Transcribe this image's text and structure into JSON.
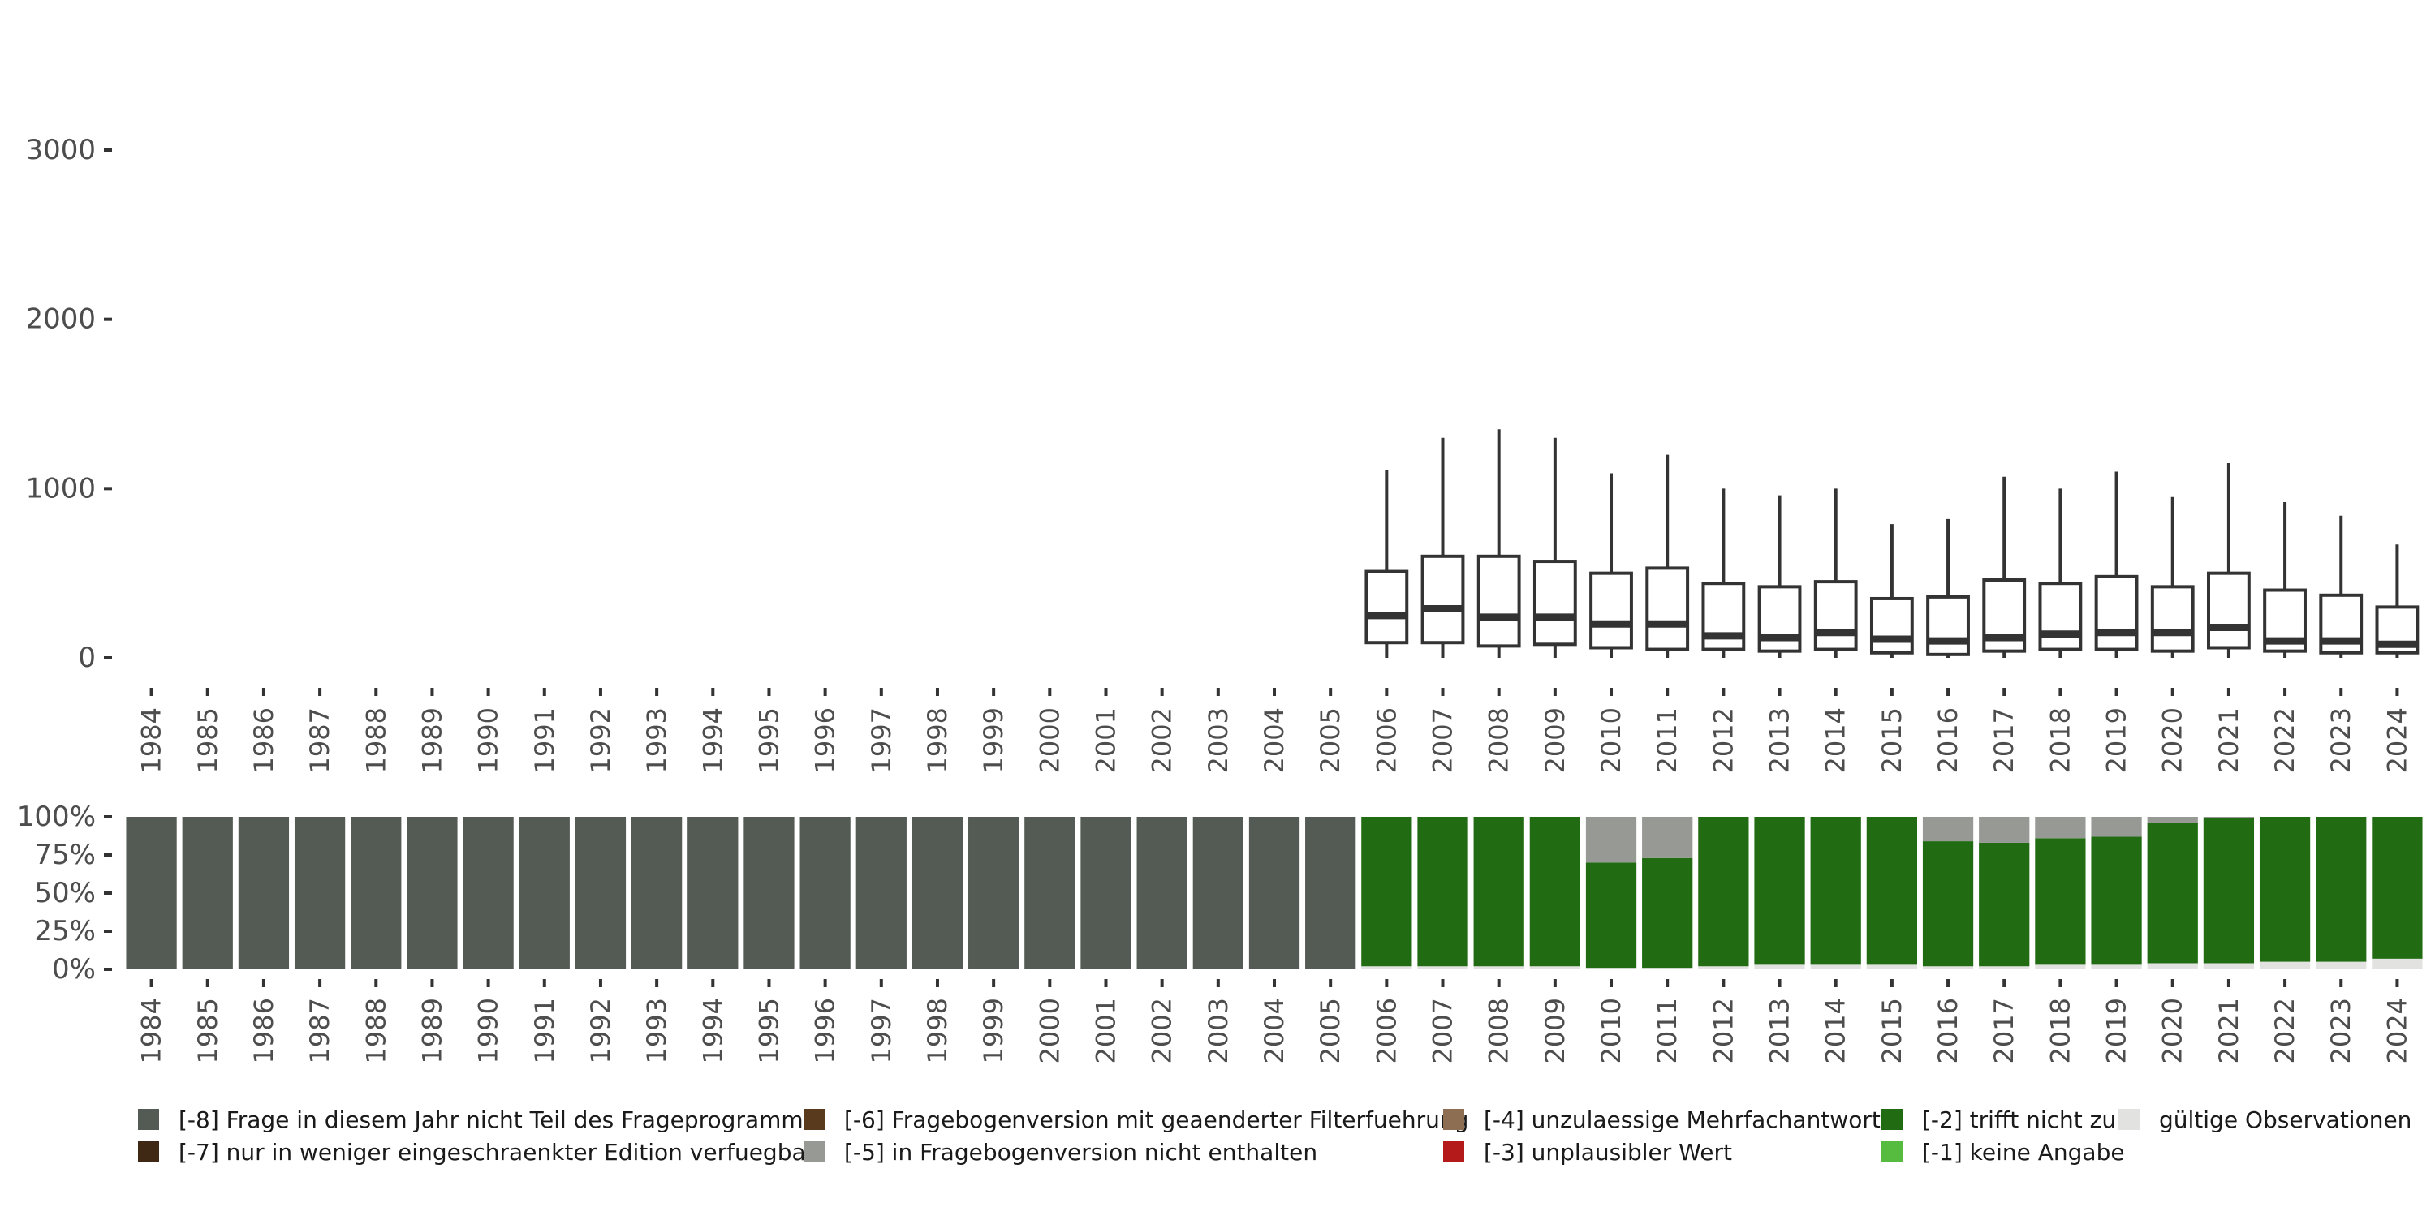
{
  "chart_data": [
    {
      "type": "boxplot",
      "title": "",
      "xlabel": "",
      "ylabel": "",
      "ylim": [
        0,
        3000
      ],
      "yticks": [
        "0",
        "1000",
        "2000",
        "3000"
      ],
      "categories": [
        "1984",
        "1985",
        "1986",
        "1987",
        "1988",
        "1989",
        "1990",
        "1991",
        "1992",
        "1993",
        "1994",
        "1995",
        "1996",
        "1997",
        "1998",
        "1999",
        "2000",
        "2001",
        "2002",
        "2003",
        "2004",
        "2005",
        "2006",
        "2007",
        "2008",
        "2009",
        "2010",
        "2011",
        "2012",
        "2013",
        "2014",
        "2015",
        "2016",
        "2017",
        "2018",
        "2019",
        "2020",
        "2021",
        "2022",
        "2023",
        "2024"
      ],
      "boxes": [
        {
          "year": "2006",
          "lower_whisker": 0,
          "q1": 90,
          "median": 250,
          "q3": 510,
          "upper_whisker": 1110
        },
        {
          "year": "2007",
          "lower_whisker": 0,
          "q1": 90,
          "median": 290,
          "q3": 600,
          "upper_whisker": 1300
        },
        {
          "year": "2008",
          "lower_whisker": 0,
          "q1": 70,
          "median": 240,
          "q3": 600,
          "upper_whisker": 1350
        },
        {
          "year": "2009",
          "lower_whisker": 0,
          "q1": 80,
          "median": 240,
          "q3": 570,
          "upper_whisker": 1300
        },
        {
          "year": "2010",
          "lower_whisker": 0,
          "q1": 60,
          "median": 200,
          "q3": 500,
          "upper_whisker": 1090
        },
        {
          "year": "2011",
          "lower_whisker": 0,
          "q1": 50,
          "median": 200,
          "q3": 530,
          "upper_whisker": 1200
        },
        {
          "year": "2012",
          "lower_whisker": 0,
          "q1": 50,
          "median": 130,
          "q3": 440,
          "upper_whisker": 1000
        },
        {
          "year": "2013",
          "lower_whisker": 0,
          "q1": 40,
          "median": 120,
          "q3": 420,
          "upper_whisker": 960
        },
        {
          "year": "2014",
          "lower_whisker": 0,
          "q1": 50,
          "median": 150,
          "q3": 450,
          "upper_whisker": 1000
        },
        {
          "year": "2015",
          "lower_whisker": 0,
          "q1": 30,
          "median": 110,
          "q3": 350,
          "upper_whisker": 790
        },
        {
          "year": "2016",
          "lower_whisker": 0,
          "q1": 20,
          "median": 100,
          "q3": 360,
          "upper_whisker": 820
        },
        {
          "year": "2017",
          "lower_whisker": 0,
          "q1": 40,
          "median": 120,
          "q3": 460,
          "upper_whisker": 1070
        },
        {
          "year": "2018",
          "lower_whisker": 0,
          "q1": 50,
          "median": 140,
          "q3": 440,
          "upper_whisker": 1000
        },
        {
          "year": "2019",
          "lower_whisker": 0,
          "q1": 50,
          "median": 150,
          "q3": 480,
          "upper_whisker": 1100
        },
        {
          "year": "2020",
          "lower_whisker": 0,
          "q1": 40,
          "median": 150,
          "q3": 420,
          "upper_whisker": 950
        },
        {
          "year": "2021",
          "lower_whisker": 0,
          "q1": 60,
          "median": 180,
          "q3": 500,
          "upper_whisker": 1150
        },
        {
          "year": "2022",
          "lower_whisker": 0,
          "q1": 40,
          "median": 100,
          "q3": 400,
          "upper_whisker": 920
        },
        {
          "year": "2023",
          "lower_whisker": 0,
          "q1": 30,
          "median": 100,
          "q3": 370,
          "upper_whisker": 840
        },
        {
          "year": "2024",
          "lower_whisker": 0,
          "q1": 30,
          "median": 80,
          "q3": 300,
          "upper_whisker": 670
        }
      ]
    },
    {
      "type": "stacked_bar",
      "title": "",
      "xlabel": "",
      "ylabel": "",
      "ylim": [
        0,
        100
      ],
      "yticks": [
        "0%",
        "25%",
        "50%",
        "75%",
        "100%"
      ],
      "categories": [
        "1984",
        "1985",
        "1986",
        "1987",
        "1988",
        "1989",
        "1990",
        "1991",
        "1992",
        "1993",
        "1994",
        "1995",
        "1996",
        "1997",
        "1998",
        "1999",
        "2000",
        "2001",
        "2002",
        "2003",
        "2004",
        "2005",
        "2006",
        "2007",
        "2008",
        "2009",
        "2010",
        "2011",
        "2012",
        "2013",
        "2014",
        "2015",
        "2016",
        "2017",
        "2018",
        "2019",
        "2020",
        "2021",
        "2022",
        "2023",
        "2024"
      ],
      "series": [
        {
          "name": "gültige Observationen",
          "color": "#e2e2e0",
          "values": [
            0,
            0,
            0,
            0,
            0,
            0,
            0,
            0,
            0,
            0,
            0,
            0,
            0,
            0,
            0,
            0,
            0,
            0,
            0,
            0,
            0,
            0,
            2,
            2,
            2,
            2,
            1,
            1,
            2,
            3,
            3,
            3,
            2,
            2,
            3,
            3,
            4,
            4,
            5,
            5,
            7
          ]
        },
        {
          "name": "[-1] keine Angabe",
          "color": "#56bc3f",
          "values": [
            0,
            0,
            0,
            0,
            0,
            0,
            0,
            0,
            0,
            0,
            0,
            0,
            0,
            0,
            0,
            0,
            0,
            0,
            0,
            0,
            0,
            0,
            0,
            0,
            0,
            0,
            0,
            0,
            0,
            0,
            0,
            0,
            0,
            0,
            0,
            0,
            0,
            0,
            0,
            0,
            0
          ]
        },
        {
          "name": "[-2] trifft nicht zu",
          "color": "#216c12",
          "values": [
            0,
            0,
            0,
            0,
            0,
            0,
            0,
            0,
            0,
            0,
            0,
            0,
            0,
            0,
            0,
            0,
            0,
            0,
            0,
            0,
            0,
            0,
            98,
            98,
            98,
            98,
            69,
            72,
            98,
            97,
            97,
            97,
            82,
            81,
            83,
            84,
            92,
            95,
            95,
            95,
            93
          ]
        },
        {
          "name": "[-3] unplausibler Wert",
          "color": "#b41a1a",
          "values": [
            0,
            0,
            0,
            0,
            0,
            0,
            0,
            0,
            0,
            0,
            0,
            0,
            0,
            0,
            0,
            0,
            0,
            0,
            0,
            0,
            0,
            0,
            0,
            0,
            0,
            0,
            0,
            0,
            0,
            0,
            0,
            0,
            0,
            0,
            0,
            0,
            0,
            0,
            0,
            0,
            0
          ]
        },
        {
          "name": "[-4] unzulaessige Mehrfachantwort",
          "color": "#8e6e53",
          "values": [
            0,
            0,
            0,
            0,
            0,
            0,
            0,
            0,
            0,
            0,
            0,
            0,
            0,
            0,
            0,
            0,
            0,
            0,
            0,
            0,
            0,
            0,
            0,
            0,
            0,
            0,
            0,
            0,
            0,
            0,
            0,
            0,
            0,
            0,
            0,
            0,
            0,
            0,
            0,
            0,
            0
          ]
        },
        {
          "name": "[-5] in Fragebogenversion nicht enthalten",
          "color": "#979a94",
          "values": [
            0,
            0,
            0,
            0,
            0,
            0,
            0,
            0,
            0,
            0,
            0,
            0,
            0,
            0,
            0,
            0,
            0,
            0,
            0,
            0,
            0,
            0,
            0,
            0,
            0,
            0,
            30,
            27,
            0,
            0,
            0,
            0,
            16,
            17,
            14,
            13,
            4,
            1,
            0,
            0,
            0
          ]
        },
        {
          "name": "[-6] Fragebogenversion mit geaenderter Filterfuehrung",
          "color": "#5a3a1c",
          "values": [
            0,
            0,
            0,
            0,
            0,
            0,
            0,
            0,
            0,
            0,
            0,
            0,
            0,
            0,
            0,
            0,
            0,
            0,
            0,
            0,
            0,
            0,
            0,
            0,
            0,
            0,
            0,
            0,
            0,
            0,
            0,
            0,
            0,
            0,
            0,
            0,
            0,
            0,
            0,
            0,
            0
          ]
        },
        {
          "name": "[-7] nur in weniger eingeschraenkter Edition verfuegbar",
          "color": "#3f2914",
          "values": [
            0,
            0,
            0,
            0,
            0,
            0,
            0,
            0,
            0,
            0,
            0,
            0,
            0,
            0,
            0,
            0,
            0,
            0,
            0,
            0,
            0,
            0,
            0,
            0,
            0,
            0,
            0,
            0,
            0,
            0,
            0,
            0,
            0,
            0,
            0,
            0,
            0,
            0,
            0,
            0,
            0
          ]
        },
        {
          "name": "[-8] Frage in diesem Jahr nicht Teil des Frageprogramms",
          "color": "#545b54",
          "values": [
            100,
            100,
            100,
            100,
            100,
            100,
            100,
            100,
            100,
            100,
            100,
            100,
            100,
            100,
            100,
            100,
            100,
            100,
            100,
            100,
            100,
            100,
            0,
            0,
            0,
            0,
            0,
            0,
            0,
            0,
            0,
            0,
            0,
            0,
            0,
            0,
            0,
            0,
            0,
            0,
            0
          ]
        }
      ],
      "legend": {
        "placement": "bottom",
        "items": [
          {
            "label": "[-8] Frage in diesem Jahr nicht Teil des Frageprogramms",
            "color": "#545b54"
          },
          {
            "label": "[-7] nur in weniger eingeschraenkter Edition verfuegbar",
            "color": "#3f2914"
          },
          {
            "label": "[-6] Fragebogenversion mit geaenderter Filterfuehrung",
            "color": "#5a3a1c"
          },
          {
            "label": "[-5] in Fragebogenversion nicht enthalten",
            "color": "#979a94"
          },
          {
            "label": "[-4] unzulaessige Mehrfachantwort",
            "color": "#8e6e53"
          },
          {
            "label": "[-3] unplausibler Wert",
            "color": "#b41a1a"
          },
          {
            "label": "[-2] trifft nicht zu",
            "color": "#216c12"
          },
          {
            "label": "[-1] keine Angabe",
            "color": "#56bc3f"
          },
          {
            "label": "gültige Observationen",
            "color": "#e2e2e0"
          }
        ]
      }
    }
  ]
}
